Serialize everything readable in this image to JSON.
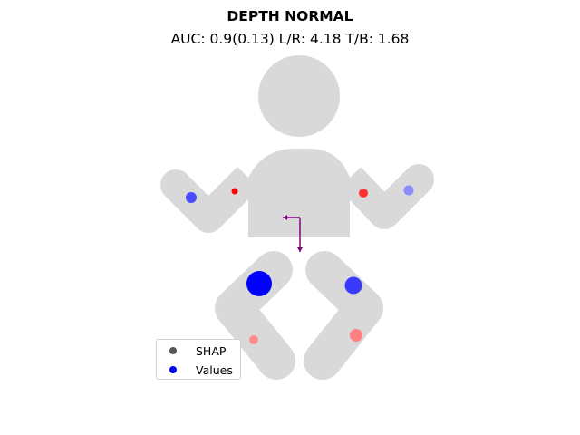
{
  "title": "DEPTH NORMAL",
  "subtitle": "AUC: 0.9(0.13) L/R: 4.18 T/B: 1.68",
  "colors": {
    "body": "#d9d9d9",
    "arrow": "#7f007f",
    "shap_marker": "#555555",
    "values_marker": "#0000ff"
  },
  "legend": {
    "items": [
      {
        "label": "SHAP",
        "color": "#555555"
      },
      {
        "label": "Values",
        "color": "#0000ff"
      }
    ]
  },
  "chart_data": {
    "type": "scatter",
    "title": "DEPTH NORMAL",
    "subtitle": "AUC: 0.9(0.13) L/R: 4.18 T/B: 1.68",
    "metrics": {
      "AUC": 0.9,
      "AUC_sd": 0.13,
      "L/R": 4.18,
      "T/B": 1.68
    },
    "body_regions": [
      {
        "region": "left-hand",
        "color": "#4a4aff",
        "size": 6
      },
      {
        "region": "left-shoulder",
        "color": "#ff0000",
        "size": 3.5
      },
      {
        "region": "right-shoulder",
        "color": "#ff3030",
        "size": 5
      },
      {
        "region": "right-hand",
        "color": "#8c8cff",
        "size": 5.5
      },
      {
        "region": "left-thigh",
        "color": "#0000ff",
        "size": 14
      },
      {
        "region": "right-thigh",
        "color": "#3a3aff",
        "size": 9.5
      },
      {
        "region": "left-shin",
        "color": "#ff8c8c",
        "size": 5
      },
      {
        "region": "right-shin",
        "color": "#ff8080",
        "size": 7
      }
    ],
    "arrows": [
      {
        "direction": "left",
        "color": "#7f007f"
      },
      {
        "direction": "down",
        "color": "#7f007f"
      }
    ]
  }
}
